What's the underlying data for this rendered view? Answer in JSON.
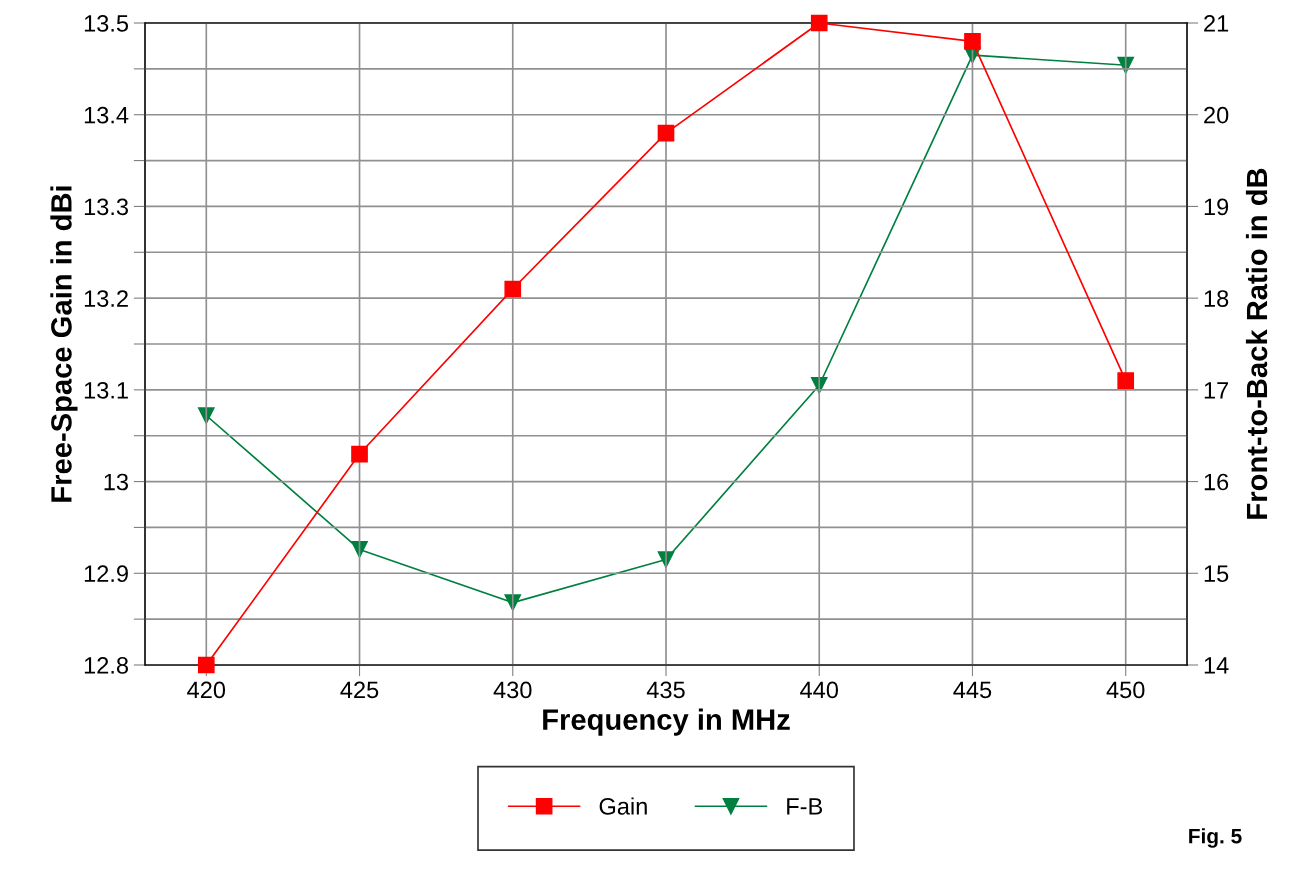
{
  "chart_data": {
    "type": "line",
    "xlabel": "Frequency in MHz",
    "ylabel": "Free-Space Gain in dBi",
    "y2label": "Front-to-Back Ratio in dB",
    "x": [
      420,
      425,
      430,
      435,
      440,
      445,
      450
    ],
    "series": [
      {
        "name": "Gain",
        "color": "#ff0000",
        "marker": "square",
        "values": [
          12.8,
          13.03,
          13.21,
          13.38,
          13.5,
          13.48,
          13.11
        ]
      },
      {
        "name": "F-B",
        "color": "#008040",
        "marker": "triangle",
        "axis": "y2",
        "values": [
          16.72,
          15.26,
          14.68,
          15.15,
          17.05,
          20.65,
          20.54
        ]
      }
    ],
    "xlim": [
      418,
      452
    ],
    "xticks": [
      420,
      425,
      430,
      435,
      440,
      445,
      450
    ],
    "ylim": [
      12.8,
      13.5
    ],
    "yticks": [
      12.8,
      {
        "value": 12.85,
        "label": null
      },
      12.9,
      {
        "value": 12.95,
        "label": null
      },
      13,
      {
        "value": 13.05,
        "label": null
      },
      13.1,
      {
        "value": 13.15,
        "label": null
      },
      13.2,
      {
        "value": 13.25,
        "label": null
      },
      13.3,
      {
        "value": 13.35,
        "label": null
      },
      13.4,
      {
        "value": 13.45,
        "label": null
      },
      13.5
    ],
    "y2lim": [
      14,
      21
    ],
    "y2ticks": [
      14,
      15,
      16,
      17,
      18,
      19,
      20,
      21
    ],
    "grid": true,
    "legend": "bottom",
    "line_style": "solid",
    "annotations": [
      "Fig. 5"
    ]
  }
}
